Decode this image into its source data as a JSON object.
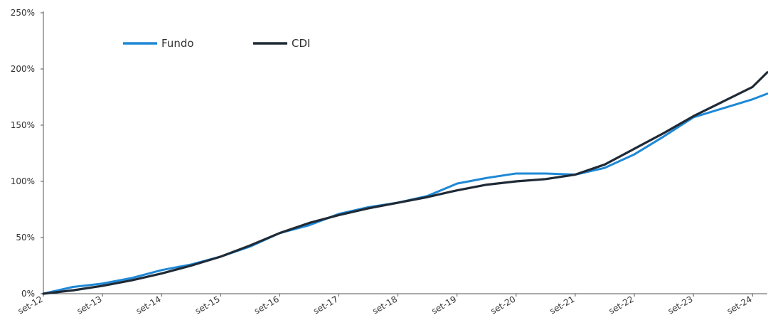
{
  "chart_data": {
    "type": "line",
    "title": "",
    "xlabel": "",
    "ylabel": "",
    "ylim": [
      0,
      250
    ],
    "y_ticks": [
      0,
      50,
      100,
      150,
      200,
      250
    ],
    "y_tick_labels": [
      "0%",
      "50%",
      "100%",
      "150%",
      "200%",
      "250%"
    ],
    "x_tick_labels": [
      "set-12",
      "set-13",
      "set-14",
      "set-15",
      "set-16",
      "set-17",
      "set-18",
      "set-19",
      "set-20",
      "set-21",
      "set-22",
      "set-23",
      "set-24"
    ],
    "x_range": [
      "2012-09",
      "2024-12"
    ],
    "grid": false,
    "legend_position": "top-left",
    "x": [
      "2012-09",
      "2013-03",
      "2013-09",
      "2014-03",
      "2014-09",
      "2015-03",
      "2015-09",
      "2016-03",
      "2016-09",
      "2017-03",
      "2017-09",
      "2018-03",
      "2018-09",
      "2019-03",
      "2019-09",
      "2020-03",
      "2020-09",
      "2021-03",
      "2021-09",
      "2022-03",
      "2022-09",
      "2023-03",
      "2023-09",
      "2024-03",
      "2024-09",
      "2024-12"
    ],
    "series": [
      {
        "name": "Fundo",
        "color": "#1e88d6",
        "values": [
          0,
          6,
          9,
          14,
          21,
          26,
          33,
          42,
          54,
          61,
          71,
          77,
          81,
          87,
          98,
          103,
          107,
          107,
          106,
          112,
          124,
          140,
          157,
          165,
          173,
          178
        ]
      },
      {
        "name": "CDI",
        "color": "#1f2a36",
        "values": [
          0,
          3,
          7,
          12,
          18,
          25,
          33,
          43,
          54,
          63,
          70,
          76,
          81,
          86,
          92,
          97,
          100,
          102,
          106,
          115,
          129,
          143,
          158,
          171,
          184,
          197
        ]
      }
    ]
  }
}
